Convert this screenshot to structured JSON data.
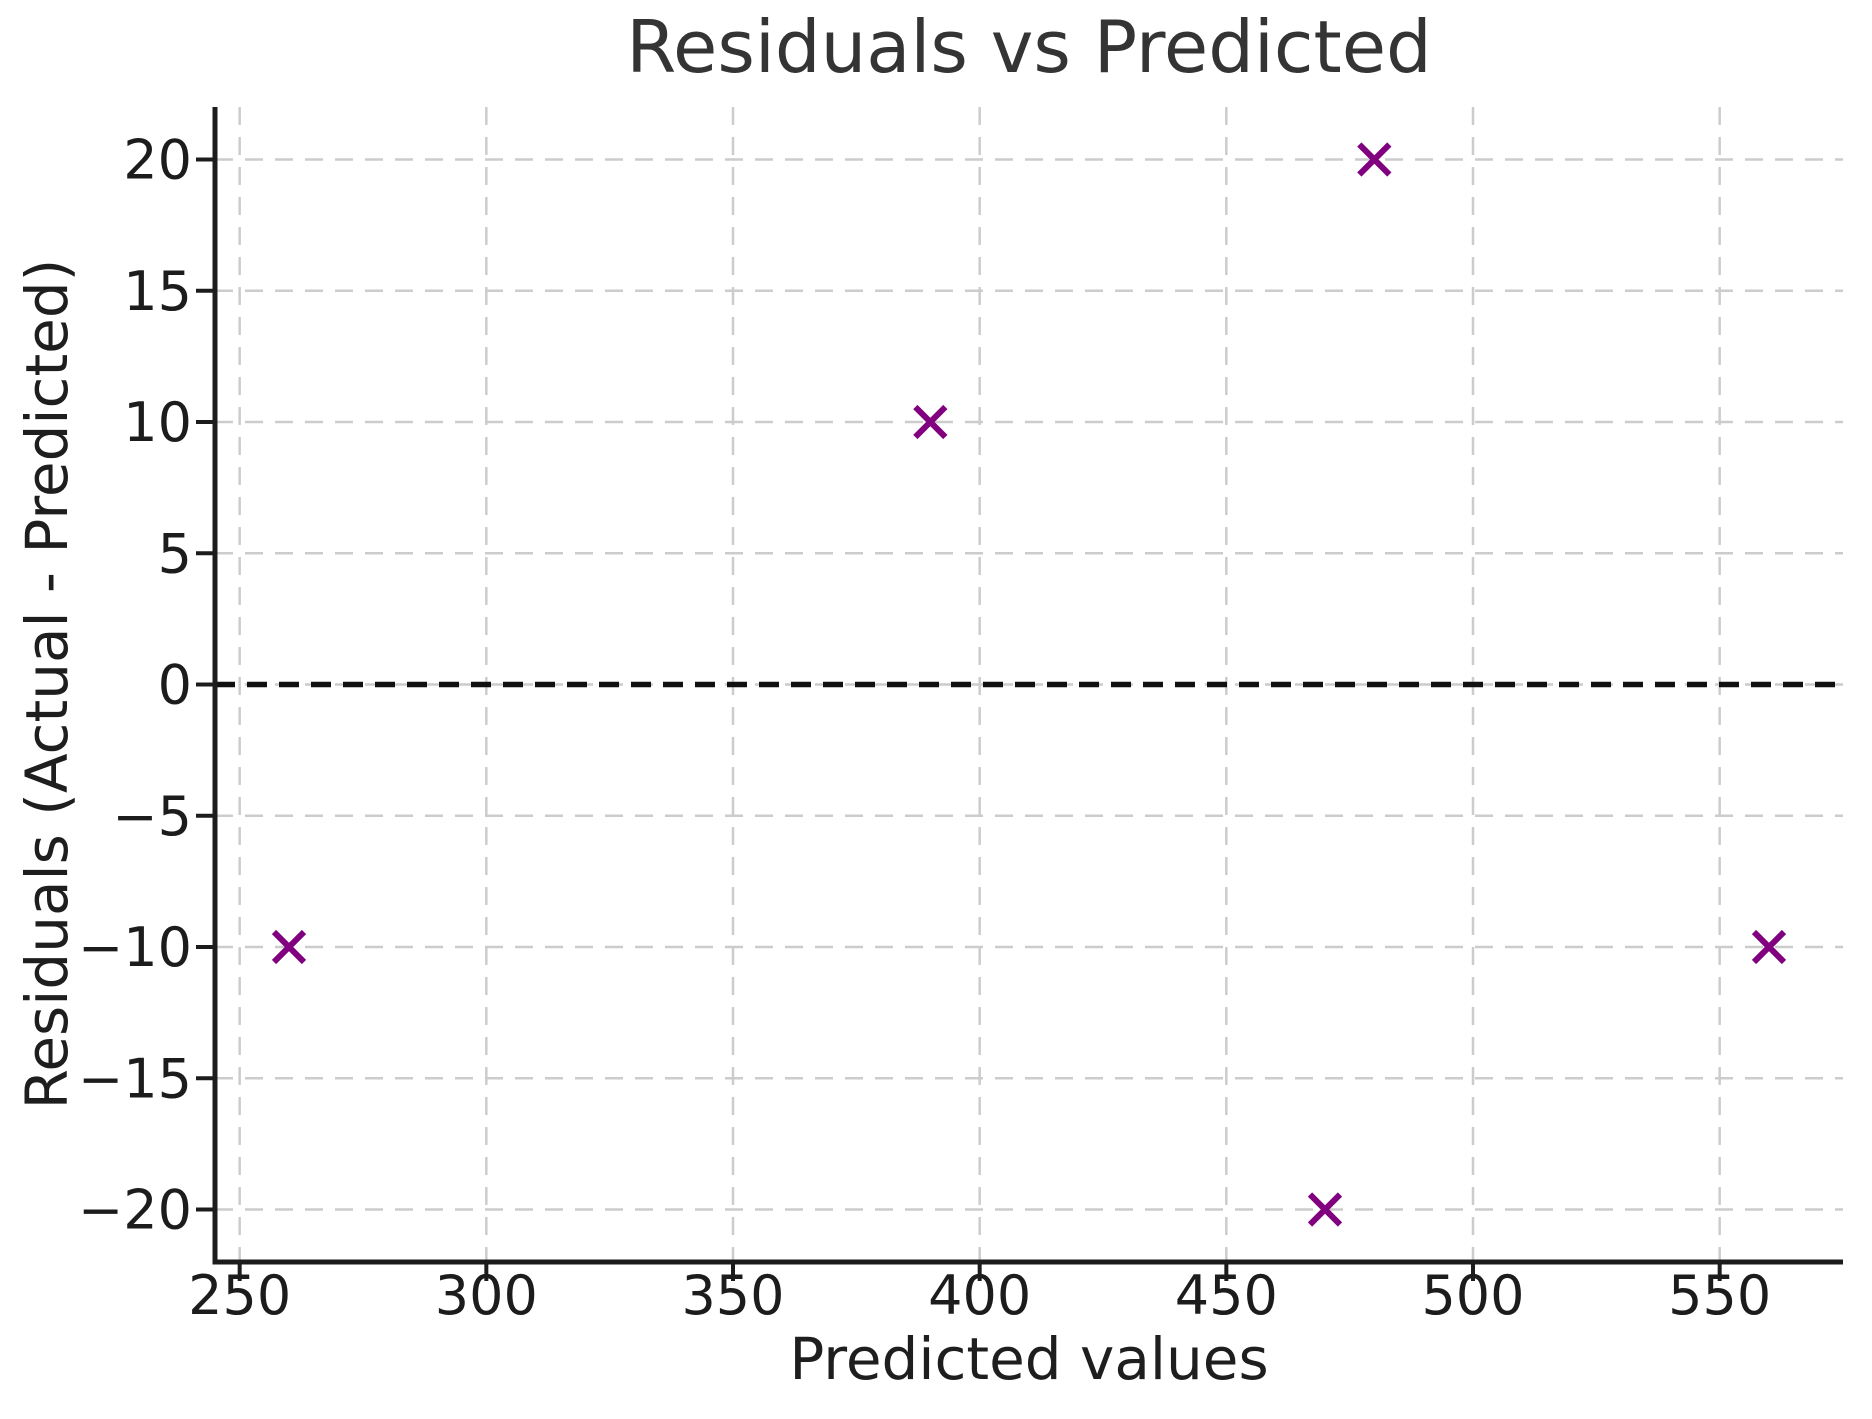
{
  "chart_data": {
    "type": "scatter",
    "title": "Residuals vs Predicted",
    "xlabel": "Predicted values",
    "ylabel": "Residuals (Actual - Predicted)",
    "xlim": [
      245,
      575
    ],
    "ylim": [
      -22,
      22
    ],
    "x_ticks": [
      250,
      300,
      350,
      400,
      450,
      500,
      550
    ],
    "y_ticks": [
      -20,
      -15,
      -10,
      -5,
      0,
      5,
      10,
      15,
      20
    ],
    "grid": true,
    "grid_style": "dashed",
    "legend": "none",
    "points": [
      {
        "x": 260,
        "y": -10
      },
      {
        "x": 390,
        "y": 10
      },
      {
        "x": 470,
        "y": -20
      },
      {
        "x": 480,
        "y": 20
      },
      {
        "x": 560,
        "y": -10
      }
    ],
    "marker": {
      "shape": "x",
      "color": "#800080",
      "size": 30,
      "stroke_width": 6
    },
    "reference_line": {
      "y": 0,
      "style": "dashed",
      "color": "#111111",
      "width": 5.5
    },
    "colors": {
      "grid": "#cccccc",
      "spine": "#1c1c1c",
      "tick": "#1c1c1c",
      "text": "#1e1e1e",
      "title_text": "#343434",
      "background": "#ffffff"
    }
  }
}
